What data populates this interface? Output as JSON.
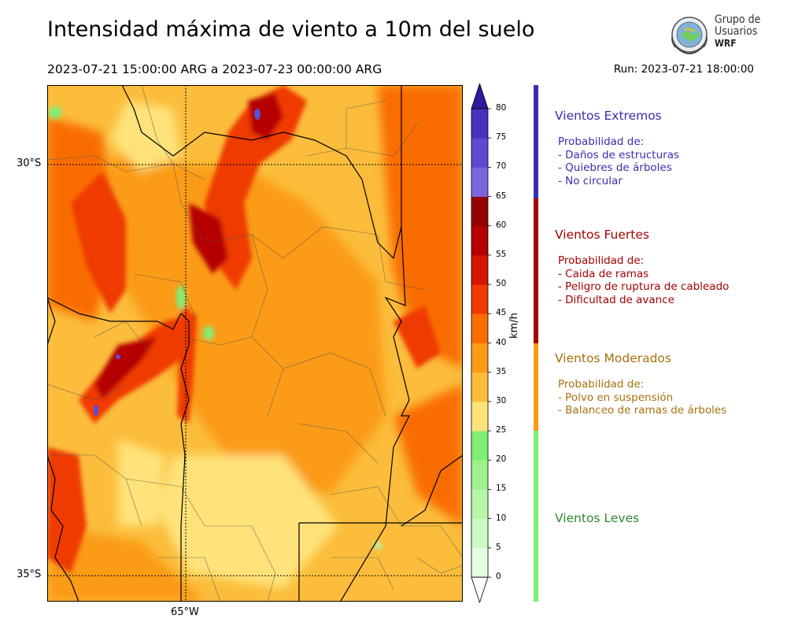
{
  "header": {
    "title": "Intensidad máxima de viento a 10m del suelo",
    "date_range": "2023-07-21 15:00:00 ARG  a  2023-07-23 00:00:00 ARG",
    "run": "Run: 2023-07-21 18:00:00"
  },
  "logo": {
    "line1": "Grupo de",
    "line2": "Usuarios",
    "line3": "WRF"
  },
  "map": {
    "lat_labels": [
      "30°S",
      "35°S"
    ],
    "lon_labels": [
      "65°W"
    ],
    "colors": {
      "c25": "#ffe37a",
      "c30": "#fbbd3b",
      "c35": "#fb9b13",
      "c40": "#f96d00",
      "c45": "#ef3a00",
      "c50": "#d81500",
      "c55": "#b60000",
      "c60": "#950000",
      "blue": "#5a4fd6",
      "green": "#7ef07a",
      "lightgreen": "#b8f5a8"
    }
  },
  "colorbar": {
    "unit": "km/h",
    "ticks": [
      "80",
      "75",
      "70",
      "65",
      "60",
      "55",
      "50",
      "45",
      "40",
      "35",
      "30",
      "25",
      "20",
      "15",
      "10",
      "5",
      "0"
    ],
    "levels": [
      "#e6fde3",
      "#cdf9c4",
      "#b7f5a9",
      "#9ff18e",
      "#80ed74",
      "#ffe37a",
      "#fbbd3b",
      "#fb9b13",
      "#f96d00",
      "#ef3a00",
      "#d81500",
      "#b60000",
      "#950000",
      "#7b66dd",
      "#5a4bd2",
      "#4630be",
      "#2d1a9d"
    ]
  },
  "legend": {
    "categories": [
      {
        "title": "Vientos Extremos",
        "color": "#3b2db0",
        "lines": [
          "Probabilidad de:",
          "- Daños de estructuras",
          "- Quiebres de árboles",
          "- No circular"
        ]
      },
      {
        "title": "Vientos Fuertes",
        "color": "#a30000",
        "lines": [
          "Probabilidad de:",
          "- Caida de ramas",
          "- Peligro de ruptura de cableado",
          "- Dificultad de avance"
        ]
      },
      {
        "title": "Vientos Moderados",
        "color": "#a8700e",
        "band_color": "#fb9b13",
        "lines": [
          "Probabilidad de:",
          "- Polvo en suspensión",
          "- Balanceo de ramas de árboles"
        ]
      },
      {
        "title": "Vientos Leves",
        "color": "#2f8a2f",
        "band_color": "#7ef07a",
        "lines": []
      }
    ]
  }
}
